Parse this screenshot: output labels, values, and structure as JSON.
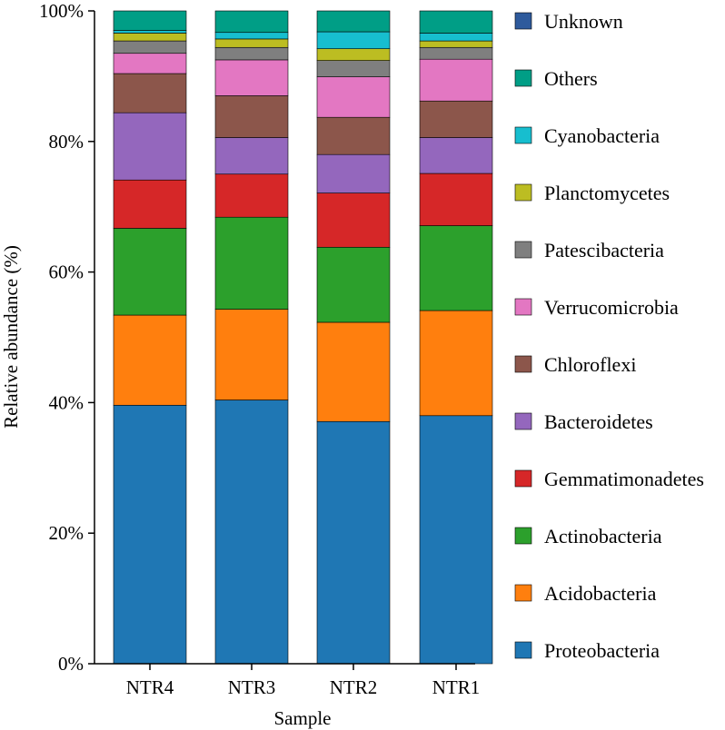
{
  "chart_data": {
    "type": "bar",
    "stacked": true,
    "xlabel": "Sample",
    "ylabel": "Relative abundance (%)",
    "ylim": [
      0,
      100
    ],
    "y_ticks": [
      "0%",
      "20%",
      "40%",
      "60%",
      "80%",
      "100%"
    ],
    "grid": false,
    "legend_position": "right",
    "categories": [
      "NTR4",
      "NTR3",
      "NTR2",
      "NTR1"
    ],
    "series": [
      {
        "name": "Proteobacteria",
        "color": "#1f77b4",
        "values": [
          39.6,
          40.4,
          37.1,
          38.0
        ]
      },
      {
        "name": "Acidobacteria",
        "color": "#ff7f0e",
        "values": [
          13.8,
          13.9,
          15.2,
          16.1
        ]
      },
      {
        "name": "Actinobacteria",
        "color": "#2ca02c",
        "values": [
          13.3,
          14.1,
          11.5,
          13.0
        ]
      },
      {
        "name": "Gemmatimonadetes",
        "color": "#d62728",
        "values": [
          7.4,
          6.6,
          8.3,
          8.0
        ]
      },
      {
        "name": "Bacteroidetes",
        "color": "#9467bd",
        "values": [
          10.3,
          5.6,
          5.9,
          5.5
        ]
      },
      {
        "name": "Chloroflexi",
        "color": "#8c564b",
        "values": [
          6.0,
          6.4,
          5.7,
          5.6
        ]
      },
      {
        "name": "Verrucomicrobia",
        "color": "#e377c2",
        "values": [
          3.1,
          5.5,
          6.2,
          6.4
        ]
      },
      {
        "name": "Patescibacteria",
        "color": "#7f7f7f",
        "values": [
          1.9,
          1.9,
          2.5,
          1.8
        ]
      },
      {
        "name": "Planctomycetes",
        "color": "#bcbd22",
        "values": [
          1.2,
          1.3,
          1.8,
          1.0
        ]
      },
      {
        "name": "Cyanobacteria",
        "color": "#17becf",
        "values": [
          0.4,
          1.0,
          2.6,
          1.2
        ]
      },
      {
        "name": "Others",
        "color": "#009e86",
        "values": [
          3.0,
          3.3,
          3.2,
          3.4
        ]
      },
      {
        "name": "Unknown",
        "color": "#2e5a9c",
        "values": [
          0.0,
          0.0,
          0.0,
          0.0
        ]
      }
    ]
  }
}
